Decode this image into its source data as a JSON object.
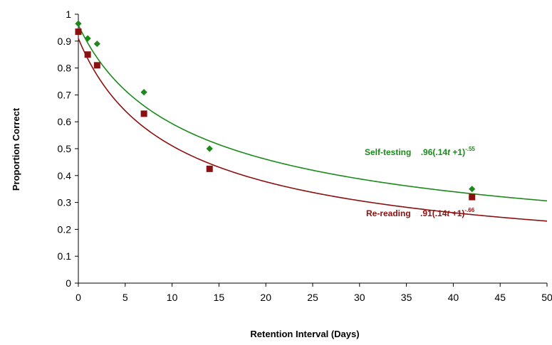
{
  "chart_data": {
    "type": "scatter",
    "xlabel": "Retention Interval (Days)",
    "ylabel": "Proportion Correct",
    "xlim": [
      0,
      50
    ],
    "ylim": [
      0,
      1
    ],
    "x_ticks": [
      "0",
      "5",
      "10",
      "15",
      "20",
      "25",
      "30",
      "35",
      "40",
      "45",
      "50"
    ],
    "y_ticks": [
      "0",
      "0.1",
      "0.2",
      "0.3",
      "0.4",
      "0.5",
      "0.6",
      "0.7",
      "0.8",
      "0.9",
      "1"
    ],
    "grid": false,
    "series": [
      {
        "marker": "diamond",
        "color": "#1a8a1a",
        "x": [
          0,
          1,
          2,
          7,
          14,
          42
        ],
        "y": [
          0.965,
          0.91,
          0.89,
          0.71,
          0.5,
          0.35
        ],
        "fit": {
          "a": 0.96,
          "b": 0.14,
          "c": -0.55
        },
        "label_name": "Self-testing",
        "label_coef": ".96(.14",
        "label_t": "t",
        "label_rest": " +1)",
        "label_exp": "-.55"
      },
      {
        "marker": "square",
        "color": "#8b1010",
        "x": [
          0,
          1,
          2,
          7,
          14,
          42
        ],
        "y": [
          0.935,
          0.85,
          0.81,
          0.63,
          0.425,
          0.32
        ],
        "fit": {
          "a": 0.91,
          "b": 0.14,
          "c": -0.66
        },
        "label_name": "Re-reading",
        "label_coef": ".91(.14",
        "label_t": "t",
        "label_rest": " +1)",
        "label_exp": "-.66"
      }
    ]
  }
}
